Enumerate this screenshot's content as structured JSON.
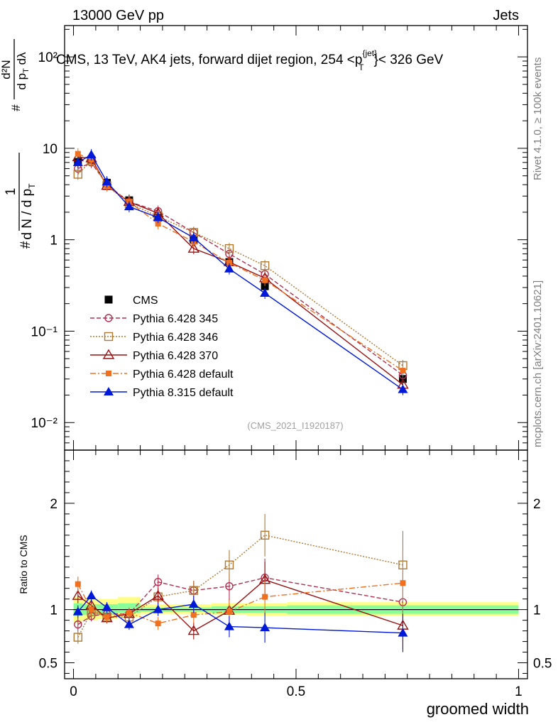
{
  "header": {
    "left": "13000 GeV pp",
    "right": "Jets"
  },
  "side_labels": {
    "rivet": "Rivet 4.1.0, ≥ 100k events",
    "mcplots": "mcplots.cern.ch [arXiv:2401.10621]"
  },
  "plot_title": "CMS, 13 TeV, AK4 jets, forward dijet region, 254 <p",
  "plot_title_sup": "{jet}",
  "plot_title_sub": "T",
  "plot_title_end": "}< 326 GeV",
  "watermark": "(CMS_2021_I1920187)",
  "ylabel_main": {
    "num": "1",
    "den": "d N / d p",
    "den_sub": "T",
    "hash": "#",
    "num2": "d²N",
    "den2": "d p",
    "den2_sub": "T",
    "den2_end": " dλ"
  },
  "ylabel_ratio": "Ratio to CMS",
  "xlabel": "groomed width",
  "colors": {
    "CMS": "#000000",
    "p345": "#b03050",
    "p346": "#b07830",
    "p370": "#9a1010",
    "pdef": "#f07020",
    "p8": "#0018d8",
    "band_yellow": "#ffff88",
    "band_green": "#88ff98"
  },
  "chart_data": [
    {
      "type": "line",
      "panel": "main",
      "title": "CMS, 13 TeV, AK4 jets, forward dijet region, 254 <p_T^{jet}< 326 GeV",
      "xlabel": "groomed width",
      "ylabel": "1/(dN/dp_T) d²N/(dp_T dλ)",
      "yscale": "log",
      "xlim": [
        -0.02,
        1.02
      ],
      "ylim": [
        0.005,
        220
      ],
      "ytick_labels": [
        "10⁻²",
        "10⁻¹",
        "1",
        "10",
        "10²"
      ],
      "x": [
        0.01,
        0.04,
        0.075,
        0.125,
        0.19,
        0.27,
        0.35,
        0.43,
        0.74
      ],
      "series": [
        {
          "name": "CMS",
          "key": "CMS",
          "marker": "square-filled",
          "style": "none",
          "values": [
            7.1,
            7.5,
            4.2,
            2.7,
            1.75,
            1.0,
            0.57,
            0.31,
            0.03
          ]
        },
        {
          "name": "Pythia 6.428 345",
          "key": "p345",
          "marker": "circle-open",
          "style": "dashed",
          "values": [
            6.0,
            7.0,
            4.0,
            2.6,
            2.05,
            1.2,
            0.7,
            0.42,
            0.033
          ]
        },
        {
          "name": "Pythia 6.428 346",
          "key": "p346",
          "marker": "square-open",
          "style": "dotted",
          "values": [
            5.2,
            7.3,
            3.9,
            2.5,
            1.8,
            1.2,
            0.8,
            0.52,
            0.042
          ]
        },
        {
          "name": "Pythia 6.428 370",
          "key": "p370",
          "marker": "triangle-open",
          "style": "solid",
          "values": [
            8.0,
            7.8,
            3.9,
            2.6,
            1.95,
            0.8,
            0.57,
            0.38,
            0.026
          ]
        },
        {
          "name": "Pythia 6.428 default",
          "key": "pdef",
          "marker": "square-filled-small",
          "style": "dashdot",
          "values": [
            8.7,
            7.5,
            3.9,
            2.6,
            1.5,
            0.95,
            0.56,
            0.36,
            0.037
          ]
        },
        {
          "name": "Pythia 8.315 default",
          "key": "p8",
          "marker": "triangle-filled",
          "style": "solid",
          "values": [
            7.0,
            8.5,
            4.3,
            2.3,
            1.75,
            1.05,
            0.48,
            0.26,
            0.023
          ]
        }
      ],
      "legend": "middle-left"
    },
    {
      "type": "line",
      "panel": "ratio",
      "ylabel": "Ratio to CMS",
      "xlabel": "groomed width",
      "xlim": [
        -0.02,
        1.02
      ],
      "ylim": [
        0.35,
        2.5
      ],
      "yticks": [
        0.5,
        1,
        2
      ],
      "ytick_labels": [
        "0.5",
        "1",
        "2"
      ],
      "xticks": [
        0,
        0.5,
        1
      ],
      "xtick_labels": [
        "0",
        "0.5",
        "1"
      ],
      "x": [
        0.01,
        0.04,
        0.075,
        0.125,
        0.19,
        0.27,
        0.35,
        0.43,
        0.74
      ],
      "bands": [
        {
          "x0": 0.0,
          "x1": 0.02,
          "yellow": [
            0.88,
            1.12
          ],
          "green": [
            0.94,
            1.06
          ]
        },
        {
          "x0": 0.02,
          "x1": 0.055,
          "yellow": [
            0.9,
            1.1
          ],
          "green": [
            0.95,
            1.05
          ]
        },
        {
          "x0": 0.055,
          "x1": 0.1,
          "yellow": [
            0.91,
            1.1
          ],
          "green": [
            0.95,
            1.05
          ]
        },
        {
          "x0": 0.1,
          "x1": 0.15,
          "yellow": [
            0.93,
            1.12
          ],
          "green": [
            0.97,
            1.06
          ]
        },
        {
          "x0": 0.15,
          "x1": 0.23,
          "yellow": [
            0.96,
            1.05
          ],
          "green": [
            0.98,
            1.02
          ]
        },
        {
          "x0": 0.23,
          "x1": 0.31,
          "yellow": [
            0.96,
            1.05
          ],
          "green": [
            0.98,
            1.02
          ]
        },
        {
          "x0": 0.31,
          "x1": 0.39,
          "yellow": [
            0.95,
            1.06
          ],
          "green": [
            0.97,
            1.03
          ]
        },
        {
          "x0": 0.39,
          "x1": 0.48,
          "yellow": [
            0.94,
            1.06
          ],
          "green": [
            0.97,
            1.03
          ]
        },
        {
          "x0": 0.48,
          "x1": 1.0,
          "yellow": [
            0.94,
            1.07
          ],
          "green": [
            0.96,
            1.04
          ]
        }
      ],
      "series": [
        {
          "name": "Pythia 6.428 345",
          "key": "p345",
          "marker": "circle-open",
          "style": "dashed",
          "values": [
            0.86,
            0.94,
            0.96,
            0.96,
            1.26,
            1.18,
            1.22,
            1.3,
            1.07
          ],
          "errors": [
            0.06,
            0.05,
            0.05,
            0.05,
            0.07,
            0.09,
            0.12,
            0.18,
            0.28
          ]
        },
        {
          "name": "Pythia 6.428 346",
          "key": "p346",
          "marker": "square-open",
          "style": "dotted",
          "values": [
            0.74,
            0.98,
            0.93,
            0.93,
            1.12,
            1.18,
            1.42,
            1.7,
            1.42
          ],
          "errors": [
            0.06,
            0.05,
            0.05,
            0.05,
            0.07,
            0.09,
            0.14,
            0.2,
            0.32
          ]
        },
        {
          "name": "Pythia 6.428 370",
          "key": "p370",
          "marker": "triangle-open",
          "style": "solid",
          "values": [
            1.13,
            1.04,
            0.92,
            0.96,
            1.13,
            0.8,
            0.99,
            1.28,
            0.85
          ],
          "errors": [
            0.07,
            0.05,
            0.05,
            0.05,
            0.07,
            0.08,
            0.11,
            0.17,
            0.22
          ]
        },
        {
          "name": "Pythia 6.428 default",
          "key": "pdef",
          "marker": "square-filled-small",
          "style": "dashdot",
          "values": [
            1.24,
            1.0,
            0.93,
            0.97,
            0.87,
            0.95,
            0.98,
            1.12,
            1.25
          ],
          "errors": [
            0.07,
            0.05,
            0.05,
            0.05,
            0.06,
            0.08,
            0.11,
            0.16,
            0.3
          ]
        },
        {
          "name": "Pythia 8.315 default",
          "key": "p8",
          "marker": "triangle-filled",
          "style": "solid",
          "values": [
            0.98,
            1.13,
            1.02,
            0.86,
            1.0,
            1.05,
            0.84,
            0.83,
            0.78
          ],
          "errors": [
            0.06,
            0.05,
            0.05,
            0.05,
            0.06,
            0.08,
            0.1,
            0.14,
            0.18
          ]
        }
      ]
    }
  ]
}
